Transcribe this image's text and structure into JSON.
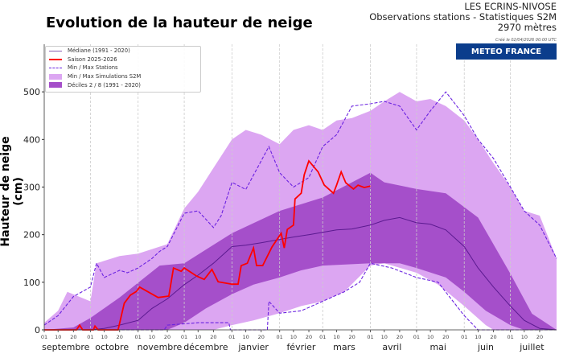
{
  "header": {
    "title": "Evolution de la hauteur de neige",
    "station": "LES ECRINS-NIVOSE",
    "subtitle": "Observations stations - Statistiques S2M",
    "altitude": "2970 mètres",
    "created": "Créé le 02/04/2026 00:00 UTC",
    "brand": "METEO FRANCE"
  },
  "chart_data": {
    "type": "area",
    "title": "Evolution de la hauteur de neige",
    "ylabel": "Hauteur de neige (cm)",
    "xlabel": "",
    "xlim": [
      "2025-09-01",
      "2026-07-31"
    ],
    "ylim": [
      0,
      600
    ],
    "yticks": [
      0,
      100,
      200,
      300,
      400,
      500
    ],
    "grid": "vertical dashed at month starts",
    "legend_position": "top-left",
    "day_tick_labels": [
      "01",
      "10",
      "20"
    ],
    "months": [
      {
        "label": "septembre",
        "start": "2025-09-01"
      },
      {
        "label": "octobre",
        "start": "2025-10-01"
      },
      {
        "label": "novembre",
        "start": "2025-11-01"
      },
      {
        "label": "décembre",
        "start": "2025-12-01"
      },
      {
        "label": "janvier",
        "start": "2026-01-01"
      },
      {
        "label": "février",
        "start": "2026-02-01"
      },
      {
        "label": "mars",
        "start": "2026-03-01"
      },
      {
        "label": "avril",
        "start": "2026-04-01"
      },
      {
        "label": "mai",
        "start": "2026-05-01"
      },
      {
        "label": "juin",
        "start": "2026-06-01"
      },
      {
        "label": "juillet",
        "start": "2026-07-01"
      }
    ],
    "colors": {
      "median": "#5b1a90",
      "season": "#ff0000",
      "stations": "#6a22e0",
      "s2m": "#dca6f2",
      "deciles": "#a54fca"
    },
    "series": [
      {
        "name": "Médiane (1991 - 2020)",
        "style": "line",
        "points": [
          [
            "2025-09-01",
            0
          ],
          [
            "2025-10-01",
            0
          ],
          [
            "2025-10-10",
            3
          ],
          [
            "2025-10-20",
            10
          ],
          [
            "2025-11-01",
            20
          ],
          [
            "2025-11-10",
            45
          ],
          [
            "2025-11-20",
            65
          ],
          [
            "2025-12-01",
            95
          ],
          [
            "2025-12-10",
            115
          ],
          [
            "2025-12-20",
            140
          ],
          [
            "2026-01-01",
            175
          ],
          [
            "2026-01-10",
            178
          ],
          [
            "2026-01-20",
            183
          ],
          [
            "2026-02-01",
            190
          ],
          [
            "2026-02-10",
            195
          ],
          [
            "2026-02-20",
            200
          ],
          [
            "2026-03-01",
            205
          ],
          [
            "2026-03-10",
            210
          ],
          [
            "2026-03-20",
            212
          ],
          [
            "2026-04-01",
            220
          ],
          [
            "2026-04-10",
            230
          ],
          [
            "2026-04-20",
            236
          ],
          [
            "2026-05-01",
            225
          ],
          [
            "2026-05-10",
            222
          ],
          [
            "2026-05-20",
            210
          ],
          [
            "2026-06-01",
            175
          ],
          [
            "2026-06-10",
            130
          ],
          [
            "2026-06-20",
            90
          ],
          [
            "2026-07-01",
            50
          ],
          [
            "2026-07-10",
            20
          ],
          [
            "2026-07-20",
            3
          ],
          [
            "2026-07-31",
            0
          ]
        ]
      },
      {
        "name": "Saison 2025-2026",
        "style": "line",
        "points": [
          [
            "2025-09-01",
            0
          ],
          [
            "2025-09-22",
            0
          ],
          [
            "2025-09-24",
            10
          ],
          [
            "2025-09-26",
            0
          ],
          [
            "2025-10-03",
            0
          ],
          [
            "2025-10-04",
            8
          ],
          [
            "2025-10-06",
            0
          ],
          [
            "2025-10-19",
            0
          ],
          [
            "2025-10-23",
            56
          ],
          [
            "2025-10-27",
            73
          ],
          [
            "2025-10-31",
            81
          ],
          [
            "2025-11-02",
            90
          ],
          [
            "2025-11-14",
            68
          ],
          [
            "2025-11-21",
            71
          ],
          [
            "2025-11-24",
            130
          ],
          [
            "2025-11-29",
            123
          ],
          [
            "2025-12-01",
            130
          ],
          [
            "2025-12-09",
            113
          ],
          [
            "2025-12-14",
            106
          ],
          [
            "2025-12-19",
            127
          ],
          [
            "2025-12-23",
            101
          ],
          [
            "2026-01-01",
            96
          ],
          [
            "2026-01-05",
            96
          ],
          [
            "2026-01-07",
            135
          ],
          [
            "2026-01-11",
            140
          ],
          [
            "2026-01-15",
            172
          ],
          [
            "2026-01-17",
            135
          ],
          [
            "2026-01-21",
            135
          ],
          [
            "2026-01-27",
            174
          ],
          [
            "2026-02-02",
            203
          ],
          [
            "2026-02-04",
            172
          ],
          [
            "2026-02-06",
            211
          ],
          [
            "2026-02-10",
            220
          ],
          [
            "2026-02-11",
            275
          ],
          [
            "2026-02-15",
            287
          ],
          [
            "2026-02-17",
            326
          ],
          [
            "2026-02-20",
            355
          ],
          [
            "2026-02-26",
            332
          ],
          [
            "2026-03-02",
            304
          ],
          [
            "2026-03-08",
            287
          ],
          [
            "2026-03-10",
            304
          ],
          [
            "2026-03-13",
            332
          ],
          [
            "2026-03-16",
            309
          ],
          [
            "2026-03-21",
            296
          ],
          [
            "2026-03-24",
            304
          ],
          [
            "2026-03-28",
            299
          ],
          [
            "2026-04-01",
            302
          ]
        ]
      },
      {
        "name": "Min / Max Stations",
        "style": "dashed",
        "max": [
          [
            "2025-09-01",
            10
          ],
          [
            "2025-09-10",
            30
          ],
          [
            "2025-09-20",
            70
          ],
          [
            "2025-10-01",
            90
          ],
          [
            "2025-10-05",
            140
          ],
          [
            "2025-10-10",
            110
          ],
          [
            "2025-10-20",
            125
          ],
          [
            "2025-10-25",
            120
          ],
          [
            "2025-11-01",
            130
          ],
          [
            "2025-11-10",
            150
          ],
          [
            "2025-11-15",
            165
          ],
          [
            "2025-11-20",
            175
          ],
          [
            "2025-12-01",
            245
          ],
          [
            "2025-12-10",
            250
          ],
          [
            "2025-12-20",
            215
          ],
          [
            "2025-12-25",
            240
          ],
          [
            "2026-01-01",
            310
          ],
          [
            "2026-01-10",
            295
          ],
          [
            "2026-01-20",
            355
          ],
          [
            "2026-01-25",
            385
          ],
          [
            "2026-02-01",
            330
          ],
          [
            "2026-02-10",
            300
          ],
          [
            "2026-02-20",
            320
          ],
          [
            "2026-03-01",
            385
          ],
          [
            "2026-03-10",
            410
          ],
          [
            "2026-03-20",
            470
          ],
          [
            "2026-04-01",
            475
          ],
          [
            "2026-04-10",
            480
          ],
          [
            "2026-04-20",
            470
          ],
          [
            "2026-05-01",
            420
          ],
          [
            "2026-05-10",
            460
          ],
          [
            "2026-05-20",
            500
          ],
          [
            "2026-06-01",
            450
          ],
          [
            "2026-06-10",
            400
          ],
          [
            "2026-06-20",
            360
          ],
          [
            "2026-07-01",
            300
          ],
          [
            "2026-07-10",
            250
          ],
          [
            "2026-07-20",
            220
          ],
          [
            "2026-07-31",
            150
          ]
        ],
        "min": [
          [
            "2025-09-01",
            0
          ],
          [
            "2025-11-18",
            0
          ],
          [
            "2025-11-20",
            10
          ],
          [
            "2025-12-10",
            15
          ],
          [
            "2025-12-30",
            15
          ],
          [
            "2025-12-31",
            0
          ],
          [
            "2026-01-24",
            0
          ],
          [
            "2026-01-25",
            60
          ],
          [
            "2026-02-01",
            35
          ],
          [
            "2026-02-15",
            40
          ],
          [
            "2026-03-01",
            60
          ],
          [
            "2026-03-15",
            80
          ],
          [
            "2026-03-25",
            100
          ],
          [
            "2026-04-01",
            140
          ],
          [
            "2026-04-15",
            130
          ],
          [
            "2026-05-01",
            110
          ],
          [
            "2026-05-15",
            100
          ],
          [
            "2026-06-01",
            30
          ],
          [
            "2026-06-10",
            0
          ],
          [
            "2026-07-31",
            0
          ]
        ]
      },
      {
        "name": "Min / Max Simulations S2M",
        "style": "band",
        "max": [
          [
            "2025-09-01",
            15
          ],
          [
            "2025-09-10",
            40
          ],
          [
            "2025-09-16",
            80
          ],
          [
            "2025-10-01",
            60
          ],
          [
            "2025-10-05",
            140
          ],
          [
            "2025-10-20",
            155
          ],
          [
            "2025-11-01",
            160
          ],
          [
            "2025-11-20",
            180
          ],
          [
            "2025-12-01",
            255
          ],
          [
            "2025-12-10",
            290
          ],
          [
            "2025-12-20",
            340
          ],
          [
            "2026-01-01",
            400
          ],
          [
            "2026-01-10",
            420
          ],
          [
            "2026-01-20",
            410
          ],
          [
            "2026-02-01",
            390
          ],
          [
            "2026-02-10",
            420
          ],
          [
            "2026-02-20",
            430
          ],
          [
            "2026-03-01",
            420
          ],
          [
            "2026-03-10",
            440
          ],
          [
            "2026-03-20",
            445
          ],
          [
            "2026-04-01",
            460
          ],
          [
            "2026-04-10",
            480
          ],
          [
            "2026-04-20",
            500
          ],
          [
            "2026-05-01",
            480
          ],
          [
            "2026-05-10",
            485
          ],
          [
            "2026-05-20",
            470
          ],
          [
            "2026-06-01",
            440
          ],
          [
            "2026-06-10",
            400
          ],
          [
            "2026-06-20",
            350
          ],
          [
            "2026-07-01",
            300
          ],
          [
            "2026-07-10",
            250
          ],
          [
            "2026-07-20",
            240
          ],
          [
            "2026-07-31",
            150
          ]
        ],
        "min": [
          [
            "2025-09-01",
            0
          ],
          [
            "2025-12-20",
            0
          ],
          [
            "2026-01-01",
            10
          ],
          [
            "2026-01-15",
            20
          ],
          [
            "2026-02-01",
            35
          ],
          [
            "2026-02-15",
            50
          ],
          [
            "2026-03-01",
            60
          ],
          [
            "2026-03-15",
            80
          ],
          [
            "2026-04-01",
            135
          ],
          [
            "2026-04-10",
            140
          ],
          [
            "2026-05-01",
            120
          ],
          [
            "2026-05-15",
            95
          ],
          [
            "2026-06-01",
            50
          ],
          [
            "2026-06-15",
            10
          ],
          [
            "2026-06-20",
            0
          ],
          [
            "2026-07-31",
            0
          ]
        ]
      },
      {
        "name": "Déciles 2 / 8  (1991 - 2020)",
        "style": "band",
        "max": [
          [
            "2025-09-01",
            0
          ],
          [
            "2025-09-20",
            5
          ],
          [
            "2025-10-01",
            25
          ],
          [
            "2025-10-20",
            68
          ],
          [
            "2025-11-15",
            135
          ],
          [
            "2025-12-01",
            140
          ],
          [
            "2026-01-01",
            203
          ],
          [
            "2026-02-01",
            250
          ],
          [
            "2026-03-01",
            278
          ],
          [
            "2026-04-01",
            330
          ],
          [
            "2026-04-10",
            310
          ],
          [
            "2026-05-01",
            296
          ],
          [
            "2026-05-20",
            287
          ],
          [
            "2026-06-10",
            236
          ],
          [
            "2026-07-01",
            118
          ],
          [
            "2026-07-15",
            34
          ],
          [
            "2026-07-31",
            0
          ]
        ],
        "min": [
          [
            "2025-09-01",
            0
          ],
          [
            "2025-11-20",
            0
          ],
          [
            "2025-12-01",
            15
          ],
          [
            "2025-12-15",
            45
          ],
          [
            "2026-01-01",
            75
          ],
          [
            "2026-01-15",
            95
          ],
          [
            "2026-02-01",
            110
          ],
          [
            "2026-02-15",
            125
          ],
          [
            "2026-03-01",
            135
          ],
          [
            "2026-04-01",
            140
          ],
          [
            "2026-04-20",
            140
          ],
          [
            "2026-05-01",
            130
          ],
          [
            "2026-05-20",
            110
          ],
          [
            "2026-06-01",
            80
          ],
          [
            "2026-06-15",
            40
          ],
          [
            "2026-07-01",
            10
          ],
          [
            "2026-07-10",
            0
          ],
          [
            "2026-07-31",
            0
          ]
        ]
      }
    ]
  }
}
